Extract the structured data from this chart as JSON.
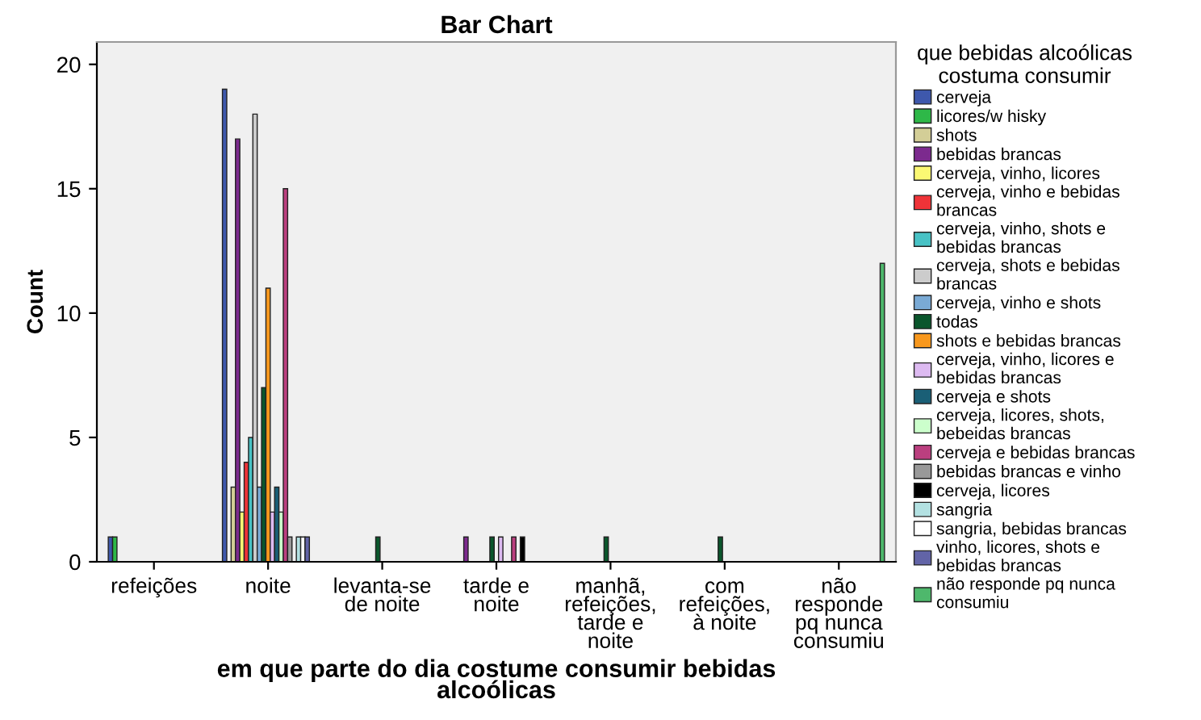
{
  "chart_data": {
    "type": "bar",
    "title": "Bar Chart",
    "xlabel": "em que parte do dia costume consumir bebidas alcoólicas",
    "ylabel": "Count",
    "legend_title": "que bebidas alcoólicas costuma consumir",
    "categories": [
      "refeições",
      "noite",
      "levanta-se de noite",
      "tarde e noite",
      "manhã, refeições, tarde e noite",
      "com refeições, à noite",
      "não responde pq nunca consumiu"
    ],
    "ylim": [
      0,
      20.9
    ],
    "yticks": [
      0,
      5,
      10,
      15,
      20
    ],
    "grid": false,
    "legend": "right",
    "series": [
      {
        "name": "cerveja",
        "color": "#3e58ac",
        "values": [
          1,
          19,
          null,
          null,
          null,
          null,
          null
        ]
      },
      {
        "name": "licores/w hisky",
        "color": "#2eb848",
        "values": [
          1,
          null,
          null,
          null,
          null,
          null,
          null
        ]
      },
      {
        "name": "shots",
        "color": "#d3ce97",
        "values": [
          null,
          3,
          null,
          null,
          null,
          null,
          null
        ]
      },
      {
        "name": "bebidas brancas",
        "color": "#7c2a8e",
        "values": [
          null,
          17,
          null,
          1,
          null,
          null,
          null
        ]
      },
      {
        "name": "cerveja, vinho, licores",
        "color": "#fbf873",
        "values": [
          null,
          2,
          null,
          null,
          null,
          null,
          null
        ]
      },
      {
        "name": "cerveja, vinho e bebidas brancas",
        "color": "#ef3338",
        "values": [
          null,
          4,
          null,
          null,
          null,
          null,
          null
        ]
      },
      {
        "name": "cerveja, vinho, shots e bebidas brancas",
        "color": "#48c2c5",
        "values": [
          null,
          5,
          null,
          null,
          null,
          null,
          null
        ]
      },
      {
        "name": "cerveja, shots e bebidas brancas",
        "color": "#cccccc",
        "values": [
          null,
          18,
          null,
          null,
          null,
          null,
          null
        ]
      },
      {
        "name": "cerveja, vinho e shots",
        "color": "#7aaad5",
        "values": [
          null,
          3,
          null,
          null,
          null,
          null,
          null
        ]
      },
      {
        "name": "todas",
        "color": "#0a562c",
        "values": [
          null,
          7,
          1,
          1,
          1,
          1,
          null
        ]
      },
      {
        "name": "shots e bebidas brancas",
        "color": "#f8981d",
        "values": [
          null,
          11,
          null,
          null,
          null,
          null,
          null
        ]
      },
      {
        "name": "cerveja, vinho, licores e bebidas brancas",
        "color": "#ddbaf1",
        "values": [
          null,
          2,
          null,
          1,
          null,
          null,
          null
        ]
      },
      {
        "name": "cerveja e shots",
        "color": "#1a5f76",
        "values": [
          null,
          3,
          null,
          null,
          null,
          null,
          null
        ]
      },
      {
        "name": "cerveja, licores, shots, bebeidas brancas",
        "color": "#ccffcc",
        "values": [
          null,
          2,
          null,
          null,
          null,
          null,
          null
        ]
      },
      {
        "name": "cerveja e bebidas brancas",
        "color": "#bb3f7f",
        "values": [
          null,
          15,
          null,
          1,
          null,
          null,
          null
        ]
      },
      {
        "name": "bebidas brancas e vinho",
        "color": "#999999",
        "values": [
          null,
          1,
          null,
          null,
          null,
          null,
          null
        ]
      },
      {
        "name": "cerveja, licores",
        "color": "#000000",
        "values": [
          null,
          null,
          null,
          1,
          null,
          null,
          null
        ]
      },
      {
        "name": "sangria",
        "color": "#b3e1e2",
        "values": [
          null,
          1,
          null,
          null,
          null,
          null,
          null
        ]
      },
      {
        "name": "sangria, bebidas brancas",
        "color": "#ffffff",
        "values": [
          null,
          1,
          null,
          null,
          null,
          null,
          null
        ]
      },
      {
        "name": "vinho, licores, shots e bebidas brancas",
        "color": "#6264a7",
        "values": [
          null,
          1,
          null,
          null,
          null,
          null,
          null
        ]
      },
      {
        "name": "não responde pq nunca consumiu",
        "color": "#4eb86c",
        "values": [
          null,
          null,
          null,
          null,
          null,
          null,
          12
        ]
      }
    ]
  }
}
